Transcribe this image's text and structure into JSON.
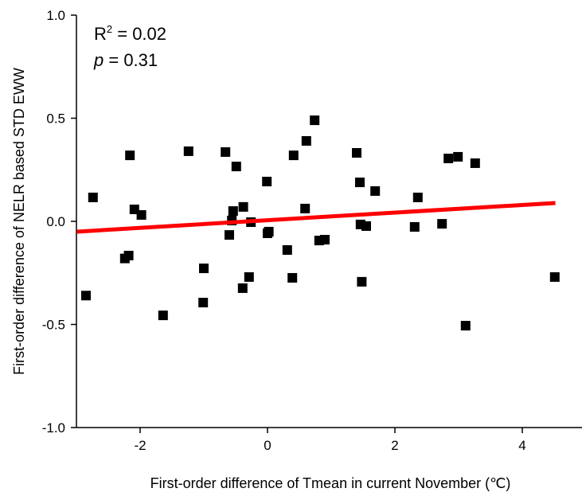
{
  "chart_data": {
    "type": "scatter",
    "xlabel": "First-order difference of Tmean in current November (℃)",
    "ylabel": "First-order difference of NELR based STD EWW",
    "annotations": [
      "R",
      "2",
      " = 0.02",
      "p",
      " = 0.31"
    ],
    "xlim": [
      -3,
      4.75
    ],
    "ylim": [
      -1.0,
      1.0
    ],
    "xticks": [
      -2,
      0,
      2,
      4
    ],
    "yticks": [
      {
        "value": 1.0,
        "label": "1.0"
      },
      0.5,
      {
        "value": 0.0,
        "label": "0.0"
      },
      -0.5,
      {
        "value": -1.0,
        "label": "-1.0"
      }
    ],
    "series": [
      {
        "color": "#000000",
        "x": [
          -2.85,
          -2.74,
          -2.16,
          -2.24,
          -2.18,
          -2.09,
          -1.98,
          -1.64,
          -1.24,
          -1.0,
          -1.01,
          -0.66,
          -0.6,
          -0.56,
          -0.54,
          -0.49,
          -0.39,
          -0.38,
          -0.29,
          -0.26,
          -0.01,
          0.0,
          0.02,
          0.31,
          0.39,
          0.41,
          0.59,
          0.61,
          0.74,
          0.81,
          0.9,
          1.4,
          1.45,
          1.46,
          1.48,
          1.55,
          1.69,
          2.31,
          2.36,
          2.74,
          2.84,
          2.99,
          3.11,
          3.26,
          4.51
        ],
        "values": [
          -0.36,
          0.116,
          0.32,
          -0.18,
          -0.166,
          0.058,
          0.031,
          -0.456,
          0.34,
          -0.228,
          -0.394,
          0.336,
          -0.066,
          0.004,
          0.05,
          0.266,
          -0.324,
          0.07,
          -0.27,
          -0.004,
          0.193,
          -0.058,
          -0.05,
          -0.139,
          -0.274,
          0.32,
          0.062,
          0.39,
          0.49,
          -0.093,
          -0.089,
          0.332,
          0.189,
          -0.015,
          -0.293,
          -0.023,
          0.147,
          -0.027,
          0.116,
          -0.012,
          0.305,
          0.313,
          -0.506,
          0.282,
          -0.27
        ]
      },
      {
        "color": "#ff0000",
        "x": [
          -2.99,
          4.52
        ],
        "values": [
          -0.05,
          0.089
        ]
      }
    ]
  }
}
